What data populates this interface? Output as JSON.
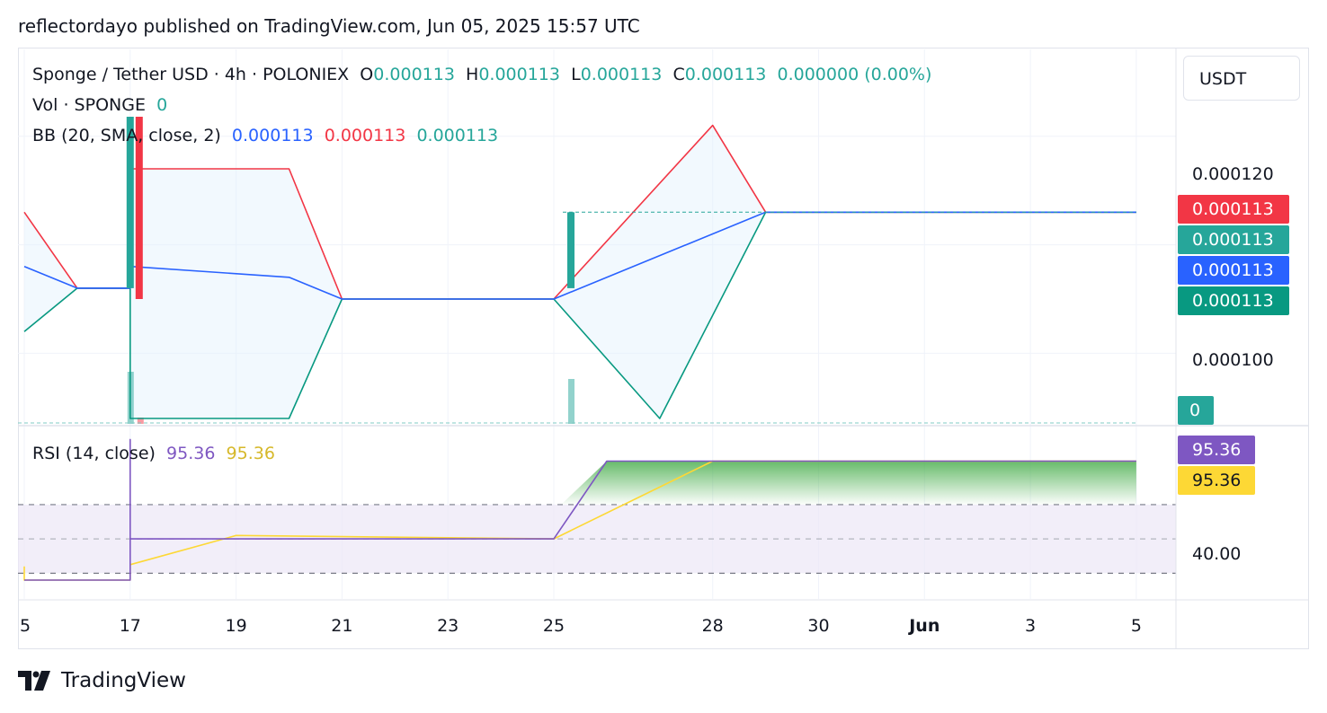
{
  "header": "reflectordayo published on TradingView.com, Jun 05, 2025 15:57 UTC",
  "legend": {
    "symbol": "Sponge / Tether USD · 4h · POLONIEX",
    "o_label": "O",
    "o_value": "0.000113",
    "h_label": "H",
    "h_value": "0.000113",
    "l_label": "L",
    "l_value": "0.000113",
    "c_label": "C",
    "c_value": "0.000113",
    "change": "0.000000 (0.00%)",
    "vol_label": "Vol · SPONGE",
    "vol_value": "0",
    "bb_label": "BB (20, SMA, close, 2)",
    "bb_basis": "0.000113",
    "bb_upper": "0.000113",
    "bb_lower": "0.000113",
    "rsi_label": "RSI (14, close)",
    "rsi_value": "95.36",
    "rsi_ma_value": "95.36"
  },
  "currency": "USDT",
  "price_tags": {
    "upper": "0.000113",
    "close": "0.000113",
    "basis": "0.000113",
    "lower": "0.000113",
    "volume": "0",
    "rsi": "95.36",
    "rsi_ma": "95.36"
  },
  "axis": {
    "price_ticks": [
      "0.000120",
      "0.000100"
    ],
    "rsi_ticks": [
      "40.00"
    ]
  },
  "colors": {
    "up": "#26a69a",
    "down": "#f23645",
    "basis": "#2962ff",
    "upper": "#f23645",
    "lower": "#089981",
    "rsi": "#7e57c2",
    "rsi_ma": "#fdd835"
  },
  "footer": {
    "brand": "TradingView"
  },
  "chart_data": {
    "type": "line",
    "title": "Sponge / Tether USD · 4h · POLONIEX",
    "x_ticks": [
      "5",
      "17",
      "19",
      "21",
      "23",
      "25",
      "28",
      "30",
      "Jun",
      "3",
      "5"
    ],
    "price_range": [
      9.35e-05,
      0.000128
    ],
    "rsi_range": [
      15,
      115
    ],
    "rsi_bands": [
      30,
      50,
      70
    ],
    "candles": [
      {
        "time": "May 17",
        "open": 0.000106,
        "high": 0.000126,
        "low": 0.000106,
        "close": 0.000126,
        "direction": "up"
      },
      {
        "time": "May 17",
        "open": 0.000126,
        "high": 0.000126,
        "low": 0.000105,
        "close": 0.000105,
        "direction": "down"
      },
      {
        "time": "May 25",
        "open": 0.000106,
        "high": 0.000113,
        "low": 0.000106,
        "close": 0.000113,
        "direction": "up"
      }
    ],
    "series": [
      {
        "name": "BB basis",
        "points": [
          [
            "May 15",
            0.000108
          ],
          [
            "May 16",
            0.000106
          ],
          [
            "May 17",
            0.000106
          ],
          [
            "May 17",
            0.000108
          ],
          [
            "May 20",
            0.000107
          ],
          [
            "May 21",
            0.000105
          ],
          [
            "May 25",
            0.000105
          ],
          [
            "May 29",
            0.000113
          ],
          [
            "Jun 5",
            0.000113
          ]
        ]
      },
      {
        "name": "BB upper",
        "points": [
          [
            "May 15",
            0.000113
          ],
          [
            "May 16",
            0.000106
          ],
          [
            "May 17",
            0.000106
          ],
          [
            "May 17",
            0.000117
          ],
          [
            "May 20",
            0.000117
          ],
          [
            "May 21",
            0.000105
          ],
          [
            "May 25",
            0.000105
          ],
          [
            "May 28",
            0.000121
          ],
          [
            "May 29",
            0.000113
          ],
          [
            "Jun 5",
            0.000113
          ]
        ]
      },
      {
        "name": "BB lower",
        "points": [
          [
            "May 15",
            0.000102
          ],
          [
            "May 16",
            0.000106
          ],
          [
            "May 17",
            0.000106
          ],
          [
            "May 17",
            9.4e-05
          ],
          [
            "May 20",
            9.4e-05
          ],
          [
            "May 21",
            0.000105
          ],
          [
            "May 25",
            0.000105
          ],
          [
            "May 27",
            9.4e-05
          ],
          [
            "May 29",
            0.000113
          ],
          [
            "Jun 5",
            0.000113
          ]
        ]
      },
      {
        "name": "RSI",
        "points": [
          [
            "May 15",
            26
          ],
          [
            "May 17",
            26
          ],
          [
            "May 17",
            108
          ],
          [
            "May 17",
            50
          ],
          [
            "May 25",
            50
          ],
          [
            "May 26",
            95.36
          ],
          [
            "Jun 5",
            95.36
          ]
        ]
      },
      {
        "name": "RSI MA",
        "points": [
          [
            "May 15",
            34
          ],
          [
            "May 15",
            26
          ],
          [
            "May 17",
            26
          ],
          [
            "May 17",
            35
          ],
          [
            "May 19",
            52
          ],
          [
            "May 25",
            50
          ],
          [
            "May 28",
            95.36
          ],
          [
            "Jun 5",
            95.36
          ]
        ]
      }
    ]
  }
}
